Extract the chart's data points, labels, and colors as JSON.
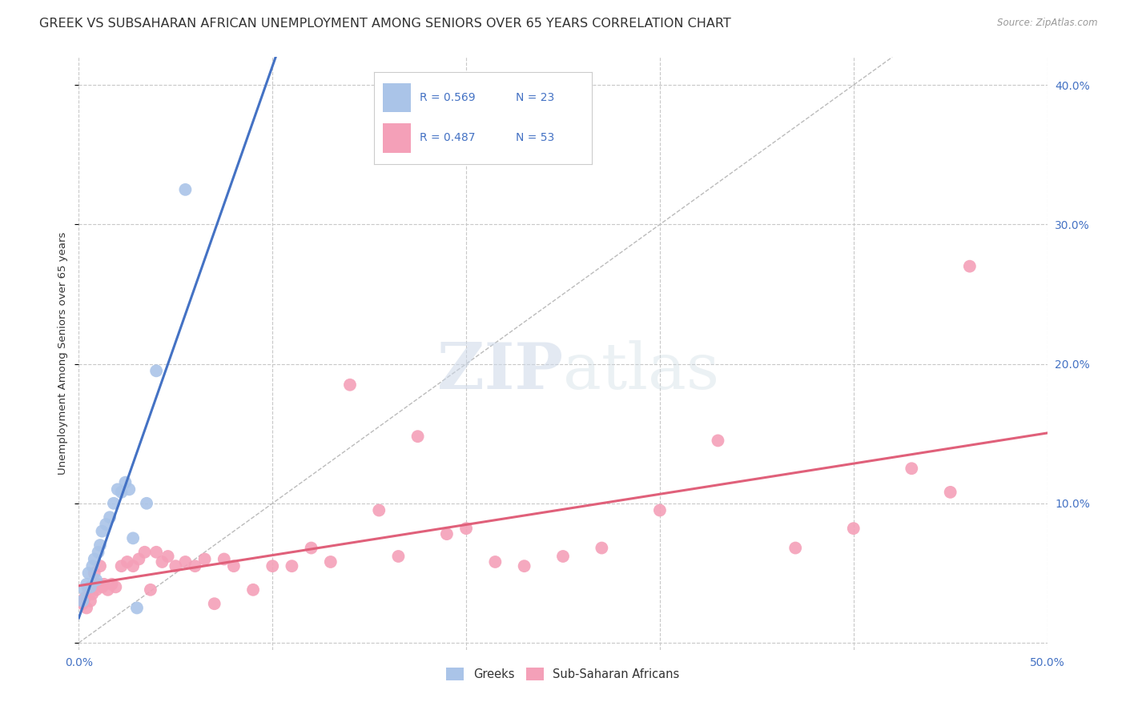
{
  "title": "GREEK VS SUBSAHARAN AFRICAN UNEMPLOYMENT AMONG SENIORS OVER 65 YEARS CORRELATION CHART",
  "source": "Source: ZipAtlas.com",
  "ylabel": "Unemployment Among Seniors over 65 years",
  "xlim": [
    0.0,
    0.5
  ],
  "ylim": [
    -0.005,
    0.42
  ],
  "xticks": [
    0.0,
    0.1,
    0.2,
    0.3,
    0.4,
    0.5
  ],
  "xticklabels": [
    "0.0%",
    "",
    "",
    "",
    "",
    "50.0%"
  ],
  "yticks": [
    0.0,
    0.1,
    0.2,
    0.3,
    0.4
  ],
  "yticklabels_right": [
    "",
    "10.0%",
    "20.0%",
    "30.0%",
    "40.0%"
  ],
  "background_color": "#ffffff",
  "grid_color": "#c8c8c8",
  "greek_color": "#aac4e8",
  "greek_line_color": "#4472c4",
  "subsaharan_color": "#f4a0b8",
  "subsaharan_line_color": "#e0607a",
  "diagonal_color": "#bbbbbb",
  "legend_R_color": "#4472c4",
  "R_greek": 0.569,
  "N_greek": 23,
  "R_subsaharan": 0.487,
  "N_subsaharan": 53,
  "greeks_x": [
    0.002,
    0.003,
    0.004,
    0.005,
    0.006,
    0.007,
    0.008,
    0.009,
    0.01,
    0.011,
    0.012,
    0.014,
    0.016,
    0.018,
    0.02,
    0.022,
    0.024,
    0.026,
    0.028,
    0.03,
    0.035,
    0.04,
    0.055
  ],
  "greeks_y": [
    0.03,
    0.038,
    0.042,
    0.05,
    0.04,
    0.055,
    0.06,
    0.045,
    0.065,
    0.07,
    0.08,
    0.085,
    0.09,
    0.1,
    0.11,
    0.108,
    0.115,
    0.11,
    0.075,
    0.025,
    0.1,
    0.195,
    0.325
  ],
  "subsaharan_x": [
    0.002,
    0.003,
    0.004,
    0.005,
    0.006,
    0.007,
    0.008,
    0.009,
    0.01,
    0.011,
    0.012,
    0.013,
    0.015,
    0.017,
    0.019,
    0.022,
    0.025,
    0.028,
    0.031,
    0.034,
    0.037,
    0.04,
    0.043,
    0.046,
    0.05,
    0.055,
    0.06,
    0.065,
    0.07,
    0.075,
    0.08,
    0.09,
    0.1,
    0.11,
    0.12,
    0.13,
    0.14,
    0.155,
    0.165,
    0.175,
    0.19,
    0.2,
    0.215,
    0.23,
    0.25,
    0.27,
    0.3,
    0.33,
    0.37,
    0.4,
    0.43,
    0.45,
    0.46
  ],
  "subsaharan_y": [
    0.028,
    0.032,
    0.025,
    0.038,
    0.03,
    0.035,
    0.05,
    0.038,
    0.042,
    0.055,
    0.04,
    0.042,
    0.038,
    0.042,
    0.04,
    0.055,
    0.058,
    0.055,
    0.06,
    0.065,
    0.038,
    0.065,
    0.058,
    0.062,
    0.055,
    0.058,
    0.055,
    0.06,
    0.028,
    0.06,
    0.055,
    0.038,
    0.055,
    0.055,
    0.068,
    0.058,
    0.185,
    0.095,
    0.062,
    0.148,
    0.078,
    0.082,
    0.058,
    0.055,
    0.062,
    0.068,
    0.095,
    0.145,
    0.068,
    0.082,
    0.125,
    0.108,
    0.27
  ],
  "watermark_zip": "ZIP",
  "watermark_atlas": "atlas",
  "title_fontsize": 11.5,
  "axis_label_fontsize": 9.5,
  "tick_fontsize": 10,
  "legend_fontsize": 10
}
